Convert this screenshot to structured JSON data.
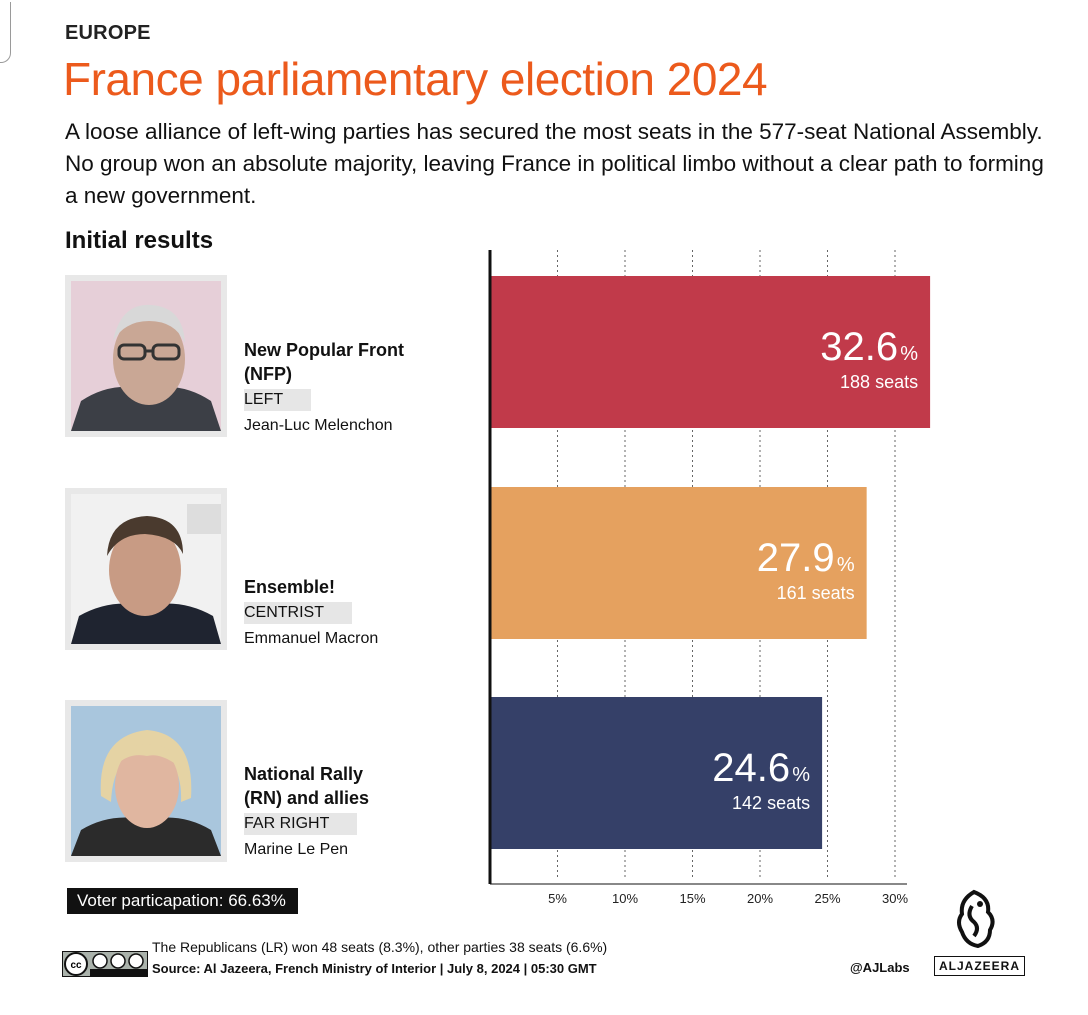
{
  "kicker": "EUROPE",
  "title": "France parliamentary election 2024",
  "subtitle": "A loose alliance of left-wing parties has secured the most seats in the 577-seat National Assembly. No group won an absolute majority, leaving France in political limbo without a clear path to forming a new government.",
  "section_heading": "Initial results",
  "parties": [
    {
      "name": "New Popular Front\n(NFP)",
      "tag": "LEFT",
      "leader": "Jean-Luc Melenchon"
    },
    {
      "name": "Ensemble!",
      "tag": "CENTRIST",
      "leader": "Emmanuel Macron"
    },
    {
      "name": "National Rally\n(RN) and allies",
      "tag": "FAR RIGHT",
      "leader": "Marine Le Pen"
    }
  ],
  "chart_data": {
    "type": "bar",
    "orientation": "horizontal",
    "categories": [
      "New Popular Front (NFP)",
      "Ensemble!",
      "National Rally (RN) and allies"
    ],
    "values": [
      32.6,
      27.9,
      24.6
    ],
    "value_labels": [
      "32.6",
      "27.9",
      "24.6"
    ],
    "value_suffix": "%",
    "seats": [
      188,
      161,
      142
    ],
    "seat_labels": [
      "188 seats",
      "161 seats",
      "142 seats"
    ],
    "colors": [
      "#c13a4a",
      "#e5a15f",
      "#354068"
    ],
    "ticks": [
      5,
      10,
      15,
      20,
      25,
      30
    ],
    "tick_labels": [
      "5%",
      "10%",
      "15%",
      "20%",
      "25%",
      "30%"
    ],
    "xlim": [
      0,
      32
    ],
    "grid": true
  },
  "turnout": "Voter particapation: 66.63%",
  "footnote": "The Republicans (LR) won 48 seats (8.3%), other parties 38 seats (6.6%)",
  "source": "Source: Al Jazeera, French Ministry of Interior  |  July 8, 2024 | 05:30 GMT",
  "handle": "@AJLabs",
  "brand": "ALJAZEERA",
  "icons": {
    "license": "cc-by-nc-sa-icon",
    "logo": "al-jazeera-logo-icon"
  }
}
